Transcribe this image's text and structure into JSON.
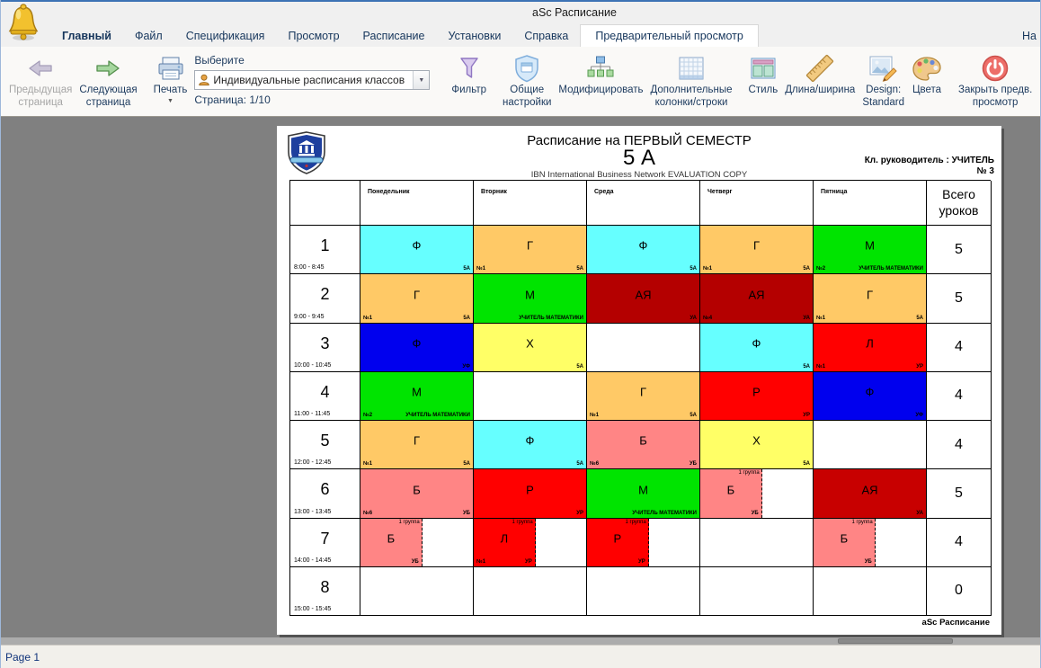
{
  "window": {
    "title": "aSc Расписание",
    "right_label": "На"
  },
  "menu": {
    "items": [
      "Главный",
      "Файл",
      "Спецификация",
      "Просмотр",
      "Расписание",
      "Установки",
      "Справка"
    ],
    "active_tab": "Предварительный просмотр"
  },
  "toolbar": {
    "prev1": "Предыдущая",
    "prev2": "страница",
    "next1": "Следующая",
    "next2": "страница",
    "print": "Печать",
    "choose_label": "Выберите",
    "combo_value": "Индивидуальные расписания классов",
    "page_counter": "Страница: 1/10",
    "filter": "Фильтр",
    "general1": "Общие",
    "general2": "настройки",
    "modify": "Модифицировать",
    "extra1": "Дополнительные",
    "extra2": "колонки/строки",
    "style": "Стиль",
    "ruler": "Длина/ширина",
    "design1": "Design:",
    "design2": "Standard",
    "colors": "Цвета",
    "close1": "Закрыть предв.",
    "close2": "просмотр"
  },
  "icons": {
    "app": "bell-icon",
    "prev": "arrow-left-icon",
    "next": "arrow-right-icon",
    "print": "printer-icon",
    "combo": "person-icon",
    "filter": "funnel-icon",
    "general": "shield-icon",
    "modify": "tree-diagram-icon",
    "extra": "grid-icon",
    "style": "window-panels-icon",
    "ruler": "ruler-icon",
    "design": "picture-pencil-icon",
    "colors": "palette-icon",
    "close": "power-icon",
    "logo": "school-shield-logo"
  },
  "colors": {
    "preview_bg": "#808080",
    "accent_text": "#1C3A5E",
    "edge_blue": "#3D73B5"
  },
  "page": {
    "title": "Расписание на ПЕРВЫЙ СЕМЕСТР",
    "class_name": "5 А",
    "watermark": "IBN International Business Network EVALUATION COPY",
    "teacher_line": "Кл. руководитель : УЧИТЕЛЬ",
    "number_line": "№ 3",
    "footer": "aSc Расписание"
  },
  "schedule": {
    "days": [
      "Понедельник",
      "Вторник",
      "Среда",
      "Четверг",
      "Пятница"
    ],
    "total_label": "Всего уроков",
    "rows": [
      {
        "num": "1",
        "time": "8:00 - 8:45",
        "total": "5",
        "cells": [
          {
            "s": "Ф",
            "bg": "#66FFFF",
            "br": "5А"
          },
          {
            "s": "Г",
            "bg": "#FFC966",
            "bl": "№1",
            "br": "5А"
          },
          {
            "s": "Ф",
            "bg": "#66FFFF",
            "br": "5А"
          },
          {
            "s": "Г",
            "bg": "#FFC966",
            "bl": "№1",
            "br": "5А"
          },
          {
            "s": "М",
            "bg": "#00E400",
            "bl": "№2",
            "br": "УЧИТЕЛЬ МАТЕМАТИКИ"
          }
        ]
      },
      {
        "num": "2",
        "time": "9:00 - 9:45",
        "total": "5",
        "cells": [
          {
            "s": "Г",
            "bg": "#FFC966",
            "bl": "№1",
            "br": "5А"
          },
          {
            "s": "М",
            "bg": "#00E400",
            "br": "УЧИТЕЛЬ МАТЕМАТИКИ"
          },
          {
            "s": "АЯ",
            "bg": "#B40000",
            "br": "УА"
          },
          {
            "s": "АЯ",
            "bg": "#B40000",
            "bl": "№4",
            "br": "УА"
          },
          {
            "s": "Г",
            "bg": "#FFC966",
            "bl": "№1",
            "br": "5А"
          }
        ]
      },
      {
        "num": "3",
        "time": "10:00 - 10:45",
        "total": "4",
        "cells": [
          {
            "s": "Ф",
            "bg": "#0000EE",
            "br": "УФ"
          },
          {
            "s": "Х",
            "bg": "#FFFF66",
            "br": "5А"
          },
          null,
          {
            "s": "Ф",
            "bg": "#66FFFF",
            "br": "5А"
          },
          {
            "s": "Л",
            "bg": "#FF0000",
            "bl": "№1",
            "br": "УР"
          }
        ]
      },
      {
        "num": "4",
        "time": "11:00 - 11:45",
        "total": "4",
        "cells": [
          {
            "s": "М",
            "bg": "#00E400",
            "bl": "№2",
            "br": "УЧИТЕЛЬ МАТЕМАТИКИ"
          },
          null,
          {
            "s": "Г",
            "bg": "#FFC966",
            "bl": "№1",
            "br": "5А"
          },
          {
            "s": "Р",
            "bg": "#FF0000",
            "br": "УР"
          },
          {
            "s": "Ф",
            "bg": "#0000EE",
            "br": "УФ"
          }
        ]
      },
      {
        "num": "5",
        "time": "12:00 - 12:45",
        "total": "4",
        "cells": [
          {
            "s": "Г",
            "bg": "#FFC966",
            "bl": "№1",
            "br": "5А"
          },
          {
            "s": "Ф",
            "bg": "#66FFFF",
            "br": "5А"
          },
          {
            "s": "Б",
            "bg": "#FF8585",
            "bl": "№6",
            "br": "УБ"
          },
          {
            "s": "Х",
            "bg": "#FFFF66",
            "br": "5А"
          },
          null
        ]
      },
      {
        "num": "6",
        "time": "13:00 - 13:45",
        "total": "5",
        "cells": [
          {
            "s": "Б",
            "bg": "#FF8585",
            "bl": "№6",
            "br": "УБ"
          },
          {
            "s": "Р",
            "bg": "#FF0000",
            "br": "УР"
          },
          {
            "s": "М",
            "bg": "#00E400",
            "br": "УЧИТЕЛЬ МАТЕМАТИКИ"
          },
          {
            "s": "Б",
            "bg": "#FF8585",
            "br": "УБ",
            "half": true,
            "group": "1 группа"
          },
          {
            "s": "АЯ",
            "bg": "#C80000",
            "br": "УА"
          }
        ]
      },
      {
        "num": "7",
        "time": "14:00 - 14:45",
        "total": "4",
        "cells": [
          {
            "s": "Б",
            "bg": "#FF8585",
            "br": "УБ",
            "half": true,
            "group": "1 группа"
          },
          {
            "s": "Л",
            "bg": "#FF0000",
            "bl": "№1",
            "br": "УР",
            "half": true,
            "group": "1 группа"
          },
          {
            "s": "Р",
            "bg": "#FF0000",
            "br": "УР",
            "half": true,
            "group": "1 группа"
          },
          null,
          {
            "s": "Б",
            "bg": "#FF8585",
            "br": "УБ",
            "half": true,
            "group": "1 группа"
          }
        ]
      },
      {
        "num": "8",
        "time": "15:00 - 15:45",
        "total": "0",
        "cells": [
          null,
          null,
          null,
          null,
          null
        ]
      }
    ]
  },
  "statusbar": {
    "text": "Page 1"
  }
}
